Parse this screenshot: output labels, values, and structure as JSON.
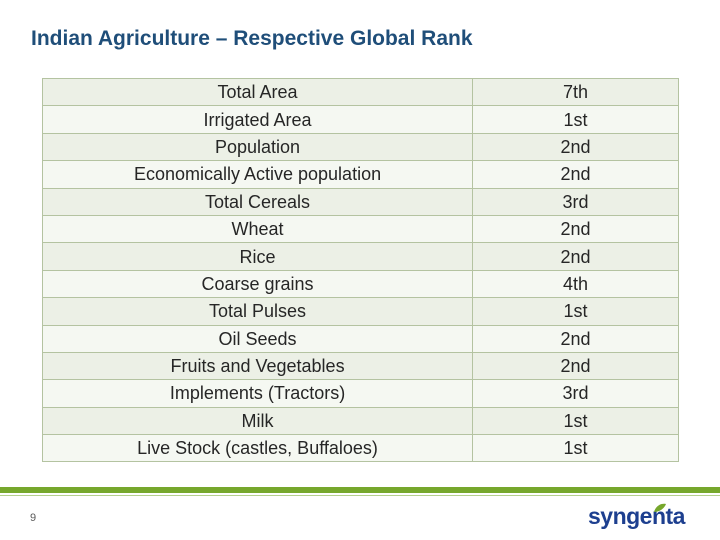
{
  "slide": {
    "title": "Indian Agriculture – Respective Global Rank",
    "page_number": "9"
  },
  "table": {
    "rows": [
      {
        "category": "Total Area",
        "rank": "7th"
      },
      {
        "category": "Irrigated Area",
        "rank": "1st"
      },
      {
        "category": "Population",
        "rank": "2nd"
      },
      {
        "category": "Economically Active population",
        "rank": "2nd"
      },
      {
        "category": "Total Cereals",
        "rank": "3rd"
      },
      {
        "category": "Wheat",
        "rank": "2nd"
      },
      {
        "category": "Rice",
        "rank": "2nd"
      },
      {
        "category": "Coarse grains",
        "rank": "4th"
      },
      {
        "category": "Total Pulses",
        "rank": "1st"
      },
      {
        "category": "Oil Seeds",
        "rank": "2nd"
      },
      {
        "category": "Fruits and Vegetables",
        "rank": "2nd"
      },
      {
        "category": "Implements (Tractors)",
        "rank": "3rd"
      },
      {
        "category": "Milk",
        "rank": "1st"
      },
      {
        "category": "Live Stock (castles, Buffaloes)",
        "rank": "1st"
      }
    ]
  },
  "logo": {
    "text": "syngenta"
  },
  "colors": {
    "title": "#1f4e79",
    "accent_green": "#76a72c",
    "logo_blue": "#1d3f8f"
  }
}
